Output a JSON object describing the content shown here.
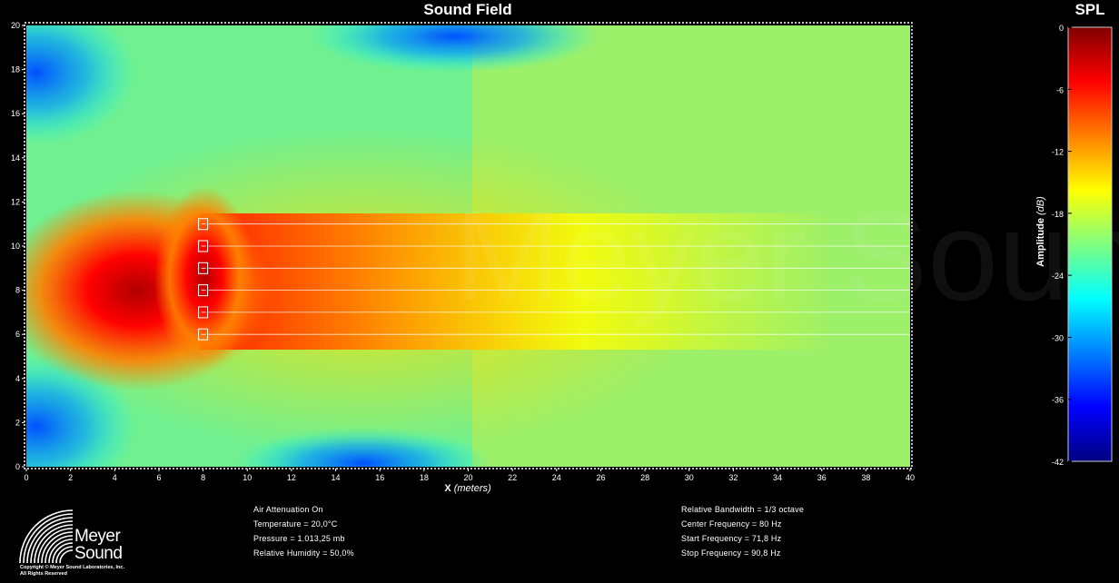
{
  "chart_data": {
    "type": "heatmap",
    "title": "Sound Field",
    "xlabel": "X",
    "xlabel_unit": "(meters)",
    "xlim": [
      0,
      40
    ],
    "ylim": [
      0,
      20
    ],
    "x_ticks": [
      "0",
      "2",
      "4",
      "6",
      "8",
      "10",
      "12",
      "14",
      "16",
      "18",
      "20",
      "22",
      "24",
      "26",
      "28",
      "30",
      "32",
      "34",
      "36",
      "38",
      "40"
    ],
    "y_ticks": [
      "0",
      "2",
      "4",
      "6",
      "8",
      "10",
      "12",
      "14",
      "16",
      "18",
      "20"
    ],
    "source": {
      "x": 8,
      "y_positions": [
        6,
        7,
        8,
        9,
        10,
        11
      ]
    },
    "colorbar": {
      "title": "SPL",
      "label": "Amplitude",
      "label_unit": "(dB)",
      "range": [
        -42,
        0
      ],
      "ticks": [
        "0",
        "-6",
        "-12",
        "-18",
        "-24",
        "-30",
        "-36",
        "-42"
      ],
      "colormap": "jet"
    },
    "watermark": "Meyer Sound"
  },
  "info_left": [
    "Air Attenuation On",
    "Temperature = 20,0°C",
    "Pressure = 1.013,25  mb",
    "Relative Humidity = 50,0%"
  ],
  "info_right": [
    "Relative Bandwidth = 1/3 octave",
    "Center Frequency = 80 Hz",
    "Start Frequency = 71,8 Hz",
    "Stop Frequency = 90,8 Hz"
  ],
  "logo": {
    "line1": "Meyer",
    "line2": "Sound"
  },
  "copyright": [
    "Copyright © Meyer Sound Laboratories, Inc.",
    "All Rights Reserved"
  ]
}
